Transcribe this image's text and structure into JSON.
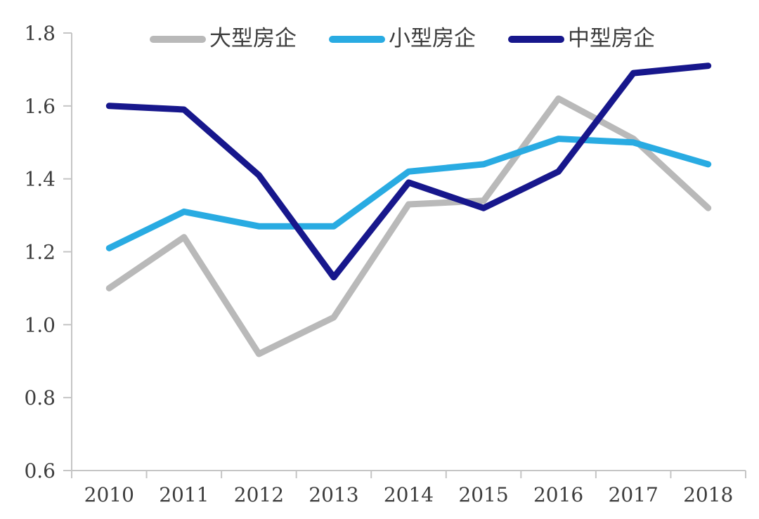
{
  "chart_data": {
    "type": "line",
    "title": "",
    "xlabel": "",
    "ylabel": "",
    "categories": [
      "2010",
      "2011",
      "2012",
      "2013",
      "2014",
      "2015",
      "2016",
      "2017",
      "2018"
    ],
    "series": [
      {
        "name": "大型房企",
        "color": "#b9b9b9",
        "values": [
          1.1,
          1.24,
          0.92,
          1.02,
          1.33,
          1.34,
          1.62,
          1.51,
          1.32
        ]
      },
      {
        "name": "小型房企",
        "color": "#29abe2",
        "values": [
          1.21,
          1.31,
          1.27,
          1.27,
          1.42,
          1.44,
          1.51,
          1.5,
          1.44
        ]
      },
      {
        "name": "中型房企",
        "color": "#17178c",
        "values": [
          1.6,
          1.59,
          1.41,
          1.13,
          1.39,
          1.32,
          1.42,
          1.69,
          1.71
        ]
      }
    ],
    "ylim": [
      0.6,
      1.8
    ],
    "ytick_step": 0.2,
    "ytick_labels": [
      "0.6",
      "0.8",
      "1.0",
      "1.2",
      "1.4",
      "1.6",
      "1.8"
    ],
    "grid": false,
    "legend_position": "top",
    "axis_color": "#c5c5c5",
    "label_color": "#3d3d3d",
    "line_width": 9
  }
}
